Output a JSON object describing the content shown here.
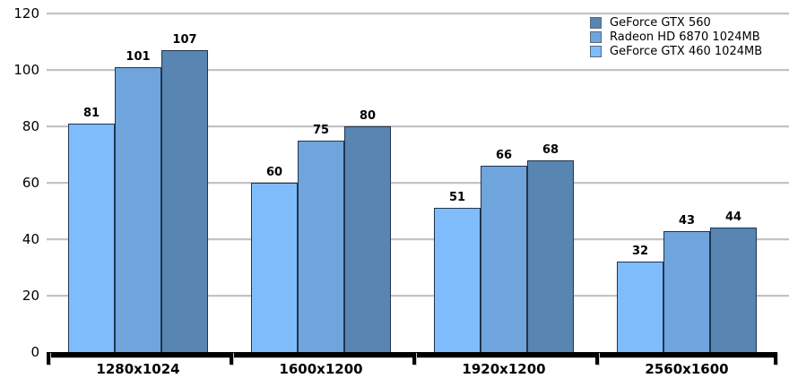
{
  "chart_data": {
    "type": "bar",
    "title": "",
    "xlabel": "",
    "ylabel": "",
    "categories": [
      "1280x1024",
      "1600x1200",
      "1920x1200",
      "2560x1600"
    ],
    "series": [
      {
        "name": "GeForce GTX 460 1024MB",
        "color": "#7fbcfb",
        "values": [
          81,
          60,
          51,
          32
        ]
      },
      {
        "name": "Radeon HD 6870 1024MB",
        "color": "#6fa5dc",
        "values": [
          101,
          75,
          66,
          43
        ]
      },
      {
        "name": "GeForce GTX 560",
        "color": "#5885b2",
        "values": [
          107,
          80,
          68,
          44
        ]
      }
    ],
    "legend": {
      "position": "top-right",
      "entries": [
        "GeForce GTX 560",
        "Radeon HD 6870 1024MB",
        "GeForce GTX 460 1024MB"
      ]
    },
    "y_axis": {
      "min": 0,
      "max": 120,
      "tick_step": 20,
      "ticks": [
        0,
        20,
        40,
        60,
        80,
        100,
        120
      ]
    },
    "grid": true,
    "data_labels": true
  },
  "colors": {
    "bar_border": "#20344d",
    "axis": "#000000",
    "gridline": "#c3c3c3",
    "background": "#ffffff",
    "text": "#000000"
  }
}
